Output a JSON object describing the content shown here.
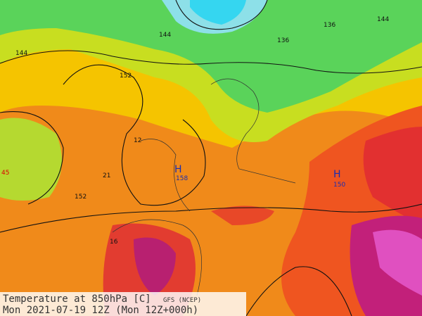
{
  "caption": {
    "line1": "Temperature at 850hPa [C]",
    "source": "GFS (NCEP)",
    "line2": "Mon 2021-07-19 12Z (Mon 12Z+000h)"
  },
  "labels": [
    "144",
    "144",
    "136",
    "136",
    "144",
    "152",
    "152",
    "H",
    "158",
    "H",
    "150",
    "45",
    "16",
    "21",
    "12"
  ]
}
